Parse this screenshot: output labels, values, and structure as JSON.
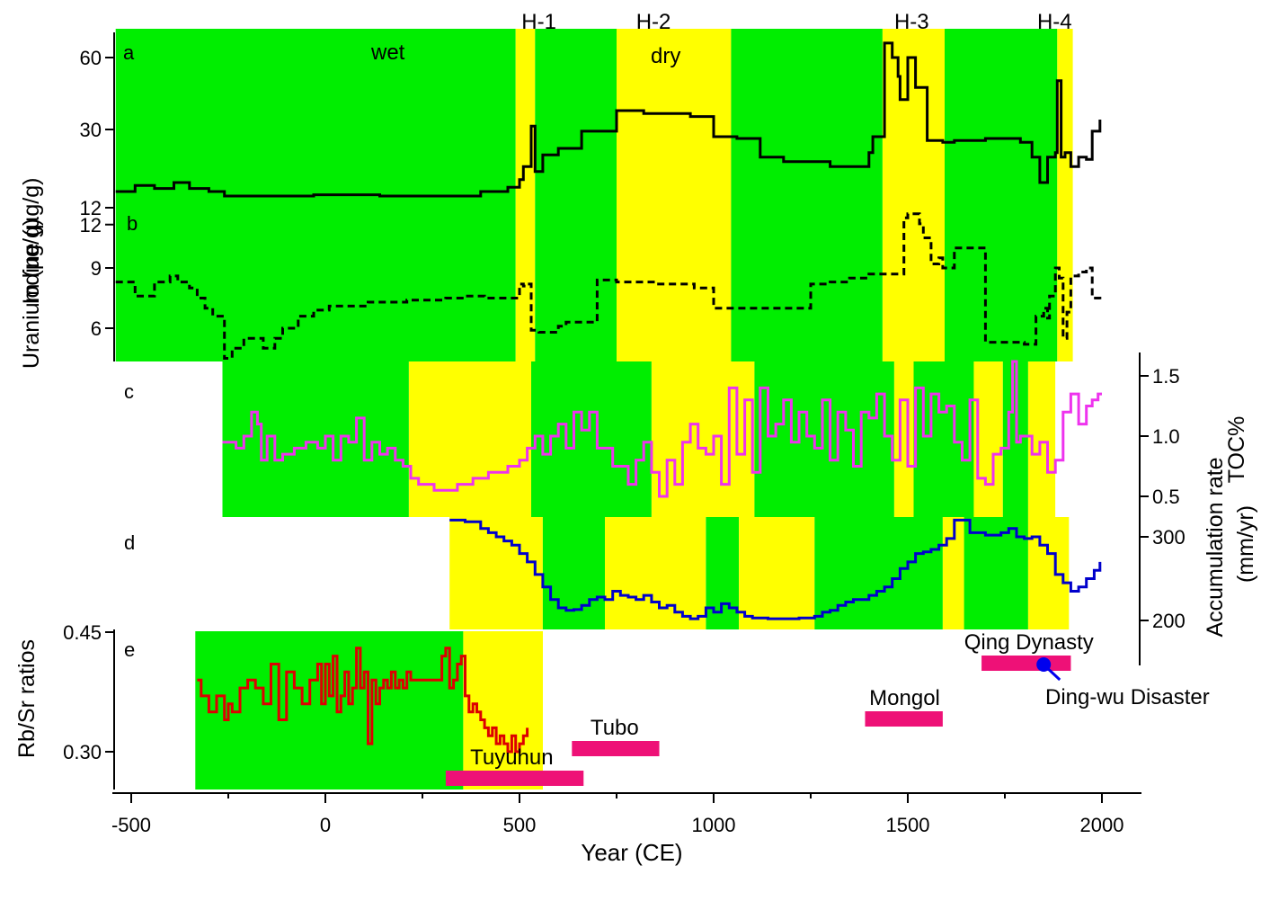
{
  "x_axis": {
    "label": "Year (CE)",
    "ticks": [
      -500,
      0,
      500,
      1000,
      1500,
      2000
    ],
    "range": [
      -550,
      2100
    ]
  },
  "events": [
    {
      "label": "H-1",
      "year": 550
    },
    {
      "label": "H-2",
      "year": 845
    },
    {
      "label": "H-3",
      "year": 1510
    },
    {
      "label": "H-4",
      "year": 1878
    }
  ],
  "periods": [
    {
      "label": "Tuyuhun",
      "start": 310,
      "end": 665
    },
    {
      "label": "Tubo",
      "start": 635,
      "end": 860
    },
    {
      "label": "Mongol",
      "start": 1390,
      "end": 1590
    },
    {
      "label": "Qing Dynasty",
      "start": 1690,
      "end": 1920
    }
  ],
  "disaster": {
    "label": "Ding-wu Disaster",
    "year": 1850
  },
  "colors": {
    "wet": "#00ee00",
    "dry": "#ffff00",
    "iodine": "#000000",
    "uranium": "#000000",
    "toc": "#ee33ee",
    "accumulation": "#0000cc",
    "rbsr": "#dd0000",
    "period": "#ee1177",
    "disaster": "#0000ee"
  },
  "chart_data": [
    {
      "panel": "a",
      "type": "line",
      "step": true,
      "ylabel": "Iodine (µg/g)",
      "yscale": "log",
      "yticks": [
        12,
        30,
        60
      ],
      "ylim": [
        12,
        70
      ],
      "annotations": [
        "wet",
        "dry"
      ],
      "shading": [
        {
          "start": -540,
          "end": 490,
          "state": "wet"
        },
        {
          "start": 490,
          "end": 540,
          "state": "dry"
        },
        {
          "start": 540,
          "end": 750,
          "state": "wet"
        },
        {
          "start": 750,
          "end": 1045,
          "state": "dry"
        },
        {
          "start": 1045,
          "end": 1435,
          "state": "wet"
        },
        {
          "start": 1435,
          "end": 1595,
          "state": "dry"
        },
        {
          "start": 1595,
          "end": 1885,
          "state": "wet"
        },
        {
          "start": 1885,
          "end": 1925,
          "state": "dry"
        }
      ],
      "series": [
        {
          "x": [
            -540,
            -490,
            -440,
            -390,
            -350,
            -300,
            -260,
            -210,
            -150,
            -90,
            -30,
            20,
            80,
            140,
            200,
            260,
            300,
            330,
            360,
            400,
            470,
            500,
            510,
            530,
            540,
            560,
            600,
            660,
            700,
            750,
            820,
            900,
            940,
            1000,
            1060,
            1120,
            1180,
            1240,
            1300,
            1350,
            1400,
            1410,
            1440,
            1460,
            1475,
            1480,
            1500,
            1520,
            1550,
            1590,
            1620,
            1660,
            1700,
            1730,
            1790,
            1820,
            1840,
            1860,
            1880,
            1885,
            1895,
            1905,
            1920,
            1940,
            1960,
            1975,
            1995
          ],
          "y": [
            16.5,
            17.5,
            17,
            18,
            17,
            16.5,
            15.5,
            14.3,
            15,
            15.3,
            16,
            16,
            16,
            15.5,
            15.5,
            15.8,
            15.5,
            13.5,
            15.5,
            16.5,
            17.2,
            18.5,
            21,
            31,
            20,
            23.5,
            25,
            29.5,
            29.5,
            36,
            35,
            35,
            34,
            28,
            27.5,
            23,
            22,
            22,
            21,
            21,
            24,
            28,
            69,
            60,
            50,
            40,
            60,
            45,
            27,
            26.5,
            27,
            27,
            27.5,
            27.5,
            26.5,
            23,
            18,
            23,
            24,
            48,
            23,
            24,
            21,
            23,
            22.5,
            29.5,
            33
          ]
        }
      ]
    },
    {
      "panel": "b",
      "type": "line",
      "step": true,
      "ylabel": "Uranium (µg/g)",
      "yticks": [
        6,
        9,
        12
      ],
      "ylim": [
        4.3,
        12.5
      ],
      "series": [
        {
          "x": [
            -540,
            -490,
            -440,
            -400,
            -380,
            -350,
            -330,
            -310,
            -290,
            -260,
            -240,
            -210,
            -160,
            -130,
            -110,
            -70,
            -30,
            10,
            60,
            110,
            160,
            210,
            260,
            310,
            360,
            410,
            460,
            500,
            510,
            520,
            530,
            550,
            600,
            620,
            650,
            700,
            750,
            800,
            850,
            900,
            950,
            1000,
            1050,
            1100,
            1150,
            1200,
            1250,
            1300,
            1350,
            1400,
            1450,
            1470,
            1480,
            1490,
            1500,
            1530,
            1540,
            1560,
            1580,
            1590,
            1620,
            1700,
            1740,
            1760,
            1790,
            1800,
            1830,
            1850,
            1860,
            1865,
            1880,
            1890,
            1900,
            1910,
            1920,
            1940,
            1960,
            1975,
            1995
          ],
          "y": [
            8.3,
            7.6,
            8.3,
            8.6,
            8.3,
            8,
            7.5,
            7.0,
            6.6,
            4.5,
            5.0,
            5.5,
            5.0,
            5.5,
            6.0,
            6.6,
            6.9,
            7.1,
            7.1,
            7.3,
            7.3,
            7.4,
            7.4,
            7.5,
            7.6,
            7.5,
            7.5,
            8.2,
            8.1,
            8.2,
            5.9,
            5.8,
            6.1,
            6.3,
            6.3,
            8.4,
            8.3,
            8.3,
            8.2,
            8.2,
            8.0,
            7.0,
            7.0,
            7.0,
            7.0,
            7.0,
            8.2,
            8.3,
            8.5,
            8.7,
            8.7,
            8.7,
            8.7,
            11.5,
            11.7,
            11.2,
            10.5,
            9.2,
            9.5,
            9.0,
            10.0,
            5.3,
            5.3,
            5.3,
            5.3,
            5.2,
            6.6,
            7.0,
            6.5,
            7.6,
            9.0,
            8.5,
            5.5,
            6.8,
            8.6,
            8.8,
            9.0,
            7.5,
            7.3
          ]
        }
      ]
    },
    {
      "panel": "c",
      "type": "line",
      "step": true,
      "ylabel": "TOC%",
      "yticks": [
        0.5,
        1.0,
        1.5
      ],
      "ylim": [
        0.3,
        1.75
      ],
      "shading": [
        {
          "start": -265,
          "end": 215,
          "state": "wet"
        },
        {
          "start": 215,
          "end": 530,
          "state": "dry"
        },
        {
          "start": 530,
          "end": 840,
          "state": "wet"
        },
        {
          "start": 840,
          "end": 1105,
          "state": "dry"
        },
        {
          "start": 1105,
          "end": 1465,
          "state": "wet"
        },
        {
          "start": 1465,
          "end": 1515,
          "state": "dry"
        },
        {
          "start": 1515,
          "end": 1670,
          "state": "wet"
        },
        {
          "start": 1670,
          "end": 1745,
          "state": "dry"
        },
        {
          "start": 1745,
          "end": 1810,
          "state": "wet"
        },
        {
          "start": 1810,
          "end": 1880,
          "state": "dry"
        }
      ],
      "series": [
        {
          "x": [
            -265,
            -230,
            -210,
            -190,
            -175,
            -165,
            -150,
            -130,
            -110,
            -80,
            -50,
            -20,
            0,
            20,
            40,
            60,
            80,
            100,
            120,
            140,
            160,
            180,
            200,
            220,
            240,
            280,
            340,
            380,
            420,
            470,
            500,
            520,
            540,
            560,
            580,
            600,
            620,
            640,
            660,
            680,
            700,
            740,
            780,
            800,
            820,
            840,
            860,
            880,
            900,
            920,
            940,
            960,
            980,
            1000,
            1020,
            1040,
            1060,
            1080,
            1100,
            1120,
            1140,
            1160,
            1180,
            1200,
            1220,
            1240,
            1260,
            1280,
            1300,
            1320,
            1340,
            1360,
            1380,
            1400,
            1420,
            1440,
            1460,
            1480,
            1500,
            1520,
            1540,
            1560,
            1580,
            1600,
            1620,
            1640,
            1660,
            1680,
            1700,
            1720,
            1740,
            1760,
            1770,
            1780,
            1790,
            1800,
            1820,
            1840,
            1860,
            1880,
            1900,
            1920,
            1940,
            1960,
            1975,
            1990,
            2000
          ],
          "y": [
            0.95,
            0.9,
            1.0,
            1.2,
            1.1,
            0.8,
            1.0,
            0.8,
            0.85,
            0.9,
            0.95,
            0.9,
            1.0,
            0.8,
            1.0,
            0.95,
            1.15,
            0.8,
            0.95,
            0.85,
            0.9,
            0.8,
            0.75,
            0.65,
            0.6,
            0.55,
            0.6,
            0.65,
            0.7,
            0.75,
            0.8,
            0.9,
            1.0,
            0.85,
            1.0,
            1.1,
            0.9,
            1.2,
            1.05,
            1.2,
            0.9,
            0.75,
            0.6,
            0.8,
            0.95,
            0.7,
            0.5,
            0.8,
            0.6,
            0.95,
            1.1,
            0.9,
            0.85,
            1.0,
            0.6,
            1.4,
            0.85,
            1.3,
            0.7,
            1.4,
            1.0,
            1.1,
            1.3,
            0.95,
            1.2,
            1.0,
            0.9,
            1.3,
            0.8,
            1.2,
            1.05,
            0.75,
            1.2,
            1.15,
            1.35,
            1.0,
            0.8,
            1.3,
            0.75,
            1.4,
            1.0,
            1.35,
            1.2,
            1.25,
            0.95,
            0.8,
            1.3,
            0.65,
            0.6,
            0.85,
            0.9,
            1.2,
            1.65,
            0.95,
            1.0,
            1.0,
            0.85,
            0.95,
            0.7,
            0.8,
            1.2,
            1.35,
            1.1,
            1.25,
            1.3,
            1.35,
            1.35
          ]
        }
      ]
    },
    {
      "panel": "d",
      "type": "line",
      "step": true,
      "ylabel": "Accumulation rate (mm/yr)",
      "yticks": [
        200,
        300
      ],
      "ylim": [
        190,
        325
      ],
      "shading": [
        {
          "start": 320,
          "end": 560,
          "state": "dry"
        },
        {
          "start": 560,
          "end": 720,
          "state": "wet"
        },
        {
          "start": 720,
          "end": 980,
          "state": "dry"
        },
        {
          "start": 980,
          "end": 1065,
          "state": "wet"
        },
        {
          "start": 1065,
          "end": 1260,
          "state": "dry"
        },
        {
          "start": 1260,
          "end": 1590,
          "state": "wet"
        },
        {
          "start": 1590,
          "end": 1645,
          "state": "dry"
        },
        {
          "start": 1645,
          "end": 1810,
          "state": "wet"
        },
        {
          "start": 1810,
          "end": 1915,
          "state": "dry"
        }
      ],
      "series": [
        {
          "x": [
            320,
            360,
            400,
            420,
            440,
            460,
            480,
            500,
            520,
            540,
            560,
            580,
            600,
            620,
            640,
            660,
            680,
            700,
            720,
            740,
            760,
            780,
            800,
            820,
            840,
            860,
            880,
            900,
            920,
            940,
            960,
            980,
            1000,
            1020,
            1040,
            1060,
            1080,
            1100,
            1140,
            1180,
            1220,
            1260,
            1280,
            1300,
            1320,
            1340,
            1360,
            1400,
            1420,
            1440,
            1460,
            1480,
            1500,
            1520,
            1540,
            1560,
            1580,
            1600,
            1620,
            1660,
            1700,
            1740,
            1760,
            1780,
            1800,
            1820,
            1840,
            1860,
            1880,
            1900,
            1920,
            1940,
            1960,
            1980,
            1995
          ],
          "y": [
            320,
            318,
            310,
            305,
            300,
            295,
            290,
            280,
            270,
            255,
            240,
            225,
            215,
            212,
            213,
            218,
            225,
            228,
            225,
            235,
            230,
            228,
            225,
            230,
            222,
            215,
            218,
            210,
            205,
            202,
            205,
            215,
            210,
            220,
            215,
            210,
            205,
            203,
            202,
            202,
            203,
            205,
            210,
            212,
            218,
            222,
            225,
            230,
            235,
            240,
            250,
            262,
            270,
            280,
            282,
            285,
            290,
            298,
            320,
            305,
            302,
            305,
            310,
            300,
            298,
            300,
            290,
            280,
            255,
            245,
            235,
            240,
            250,
            260,
            270
          ]
        }
      ]
    },
    {
      "panel": "e",
      "type": "line",
      "step": true,
      "ylabel": "Rb/Sr ratios",
      "yticks": [
        0.3,
        0.45
      ],
      "ylim": [
        0.26,
        0.46
      ],
      "shading": [
        {
          "start": -335,
          "end": 355,
          "state": "wet"
        },
        {
          "start": 355,
          "end": 560,
          "state": "dry"
        }
      ],
      "series": [
        {
          "x": [
            -330,
            -320,
            -300,
            -280,
            -260,
            -250,
            -240,
            -220,
            -200,
            -180,
            -160,
            -140,
            -120,
            -100,
            -80,
            -60,
            -40,
            -20,
            -10,
            0,
            10,
            20,
            30,
            40,
            50,
            60,
            70,
            80,
            90,
            100,
            110,
            120,
            130,
            140,
            150,
            160,
            170,
            180,
            190,
            200,
            210,
            220,
            240,
            260,
            280,
            300,
            310,
            320,
            330,
            340,
            350,
            360,
            370,
            380,
            390,
            400,
            410,
            420,
            430,
            440,
            450,
            460,
            470,
            480,
            490,
            500,
            510,
            520
          ],
          "y": [
            0.39,
            0.37,
            0.35,
            0.37,
            0.34,
            0.36,
            0.35,
            0.38,
            0.39,
            0.38,
            0.36,
            0.41,
            0.34,
            0.4,
            0.38,
            0.36,
            0.39,
            0.41,
            0.36,
            0.41,
            0.37,
            0.42,
            0.35,
            0.37,
            0.4,
            0.36,
            0.38,
            0.43,
            0.38,
            0.4,
            0.31,
            0.39,
            0.36,
            0.38,
            0.39,
            0.38,
            0.4,
            0.38,
            0.39,
            0.38,
            0.4,
            0.39,
            0.39,
            0.39,
            0.39,
            0.42,
            0.43,
            0.38,
            0.39,
            0.41,
            0.42,
            0.37,
            0.35,
            0.36,
            0.35,
            0.34,
            0.33,
            0.32,
            0.33,
            0.31,
            0.32,
            0.31,
            0.3,
            0.32,
            0.3,
            0.31,
            0.32,
            0.33
          ]
        }
      ]
    }
  ]
}
